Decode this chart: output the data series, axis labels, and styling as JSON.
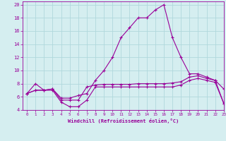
{
  "xlabel": "Windchill (Refroidissement éolien,°C)",
  "bg_color": "#d5eef0",
  "grid_color": "#b0d8dc",
  "line_color": "#990099",
  "xlim": [
    -0.5,
    23
  ],
  "ylim": [
    4,
    20.5
  ],
  "yticks": [
    4,
    6,
    8,
    10,
    12,
    14,
    16,
    18,
    20
  ],
  "xticks": [
    0,
    1,
    2,
    3,
    4,
    5,
    6,
    7,
    8,
    9,
    10,
    11,
    12,
    13,
    14,
    15,
    16,
    17,
    18,
    19,
    20,
    21,
    22,
    23
  ],
  "series1_x": [
    0,
    1,
    2,
    3,
    4,
    5,
    6,
    7,
    8,
    9,
    10,
    11,
    12,
    13,
    14,
    15,
    16,
    17,
    18,
    19,
    20,
    21,
    22,
    23
  ],
  "series1_y": [
    6.5,
    8.0,
    7.0,
    7.2,
    5.8,
    5.8,
    6.2,
    6.5,
    8.5,
    10.0,
    12.0,
    15.0,
    16.5,
    18.0,
    18.0,
    19.2,
    20.0,
    15.0,
    12.0,
    9.5,
    9.5,
    9.0,
    8.5,
    5.0
  ],
  "series2_x": [
    0,
    1,
    2,
    3,
    4,
    5,
    6,
    7,
    8,
    9,
    10,
    11,
    12,
    13,
    14,
    15,
    16,
    17,
    18,
    19,
    20,
    21,
    22,
    23
  ],
  "series2_y": [
    6.5,
    7.0,
    7.0,
    7.2,
    5.5,
    5.5,
    5.5,
    7.5,
    7.8,
    7.9,
    7.9,
    7.9,
    7.9,
    8.0,
    8.0,
    8.0,
    8.0,
    8.1,
    8.3,
    9.0,
    9.2,
    8.8,
    8.5,
    7.2
  ],
  "series3_x": [
    0,
    1,
    2,
    3,
    4,
    5,
    6,
    7,
    8,
    9,
    10,
    11,
    12,
    13,
    14,
    15,
    16,
    17,
    18,
    19,
    20,
    21,
    22,
    23
  ],
  "series3_y": [
    6.5,
    7.0,
    7.0,
    7.0,
    5.2,
    4.5,
    4.5,
    5.5,
    7.5,
    7.5,
    7.5,
    7.5,
    7.5,
    7.5,
    7.5,
    7.5,
    7.5,
    7.5,
    7.8,
    8.5,
    8.8,
    8.5,
    8.2,
    5.0
  ]
}
